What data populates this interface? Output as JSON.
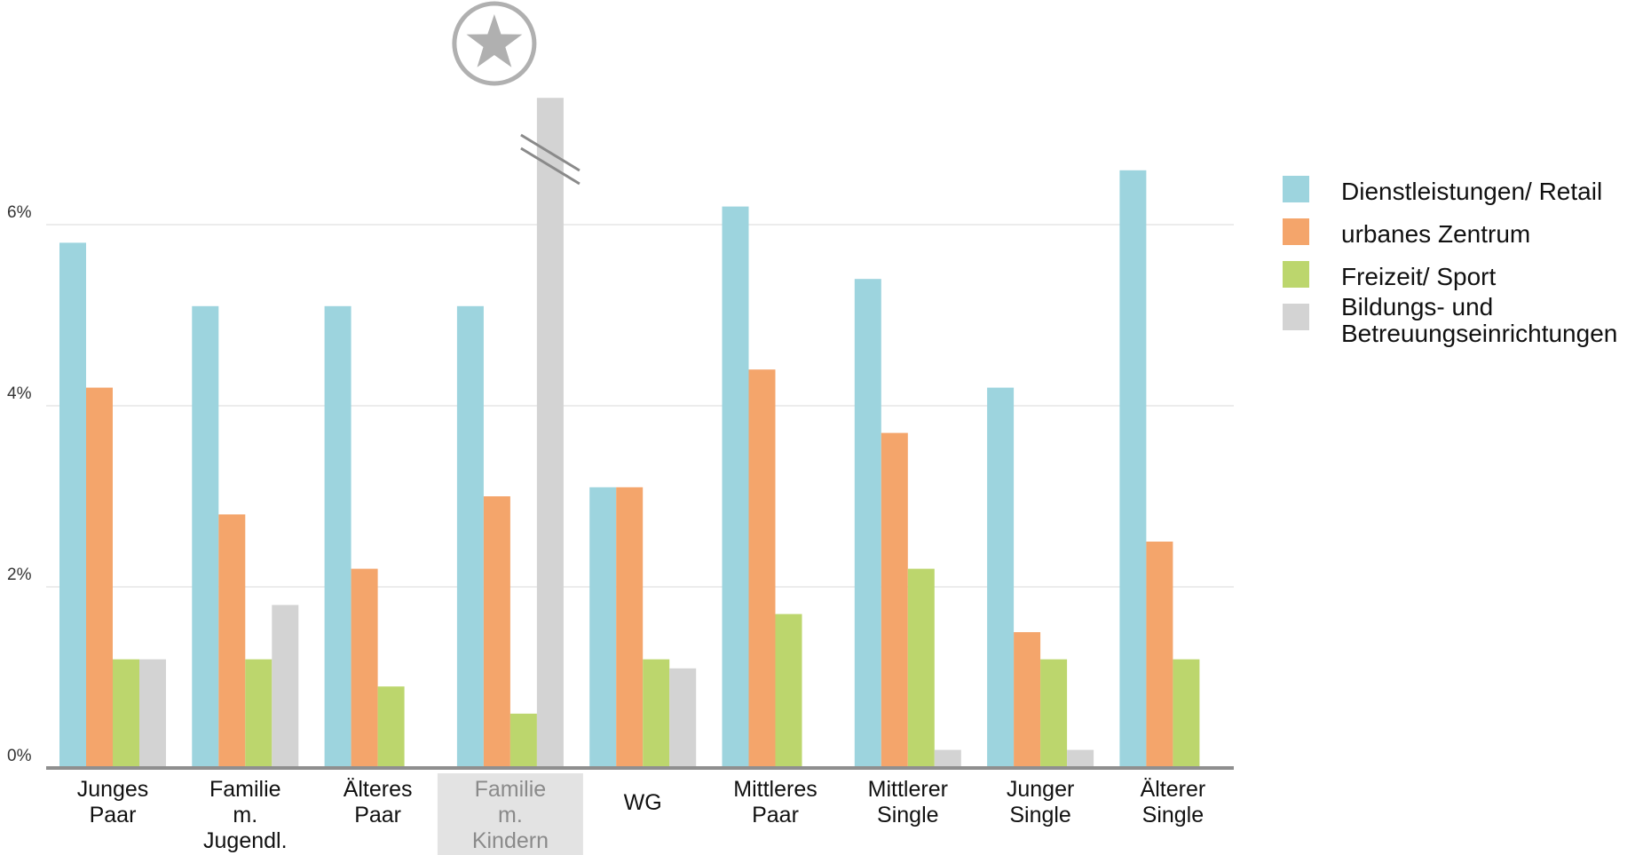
{
  "chart_data": {
    "type": "bar",
    "title": "",
    "xlabel": "",
    "ylabel": "",
    "ylim": [
      0,
      7.5
    ],
    "yticks": [
      0,
      2,
      4,
      6
    ],
    "ytick_labels": [
      "0%",
      "2%",
      "4%",
      "6%"
    ],
    "grid": true,
    "legend_position": "right",
    "categories": [
      [
        "Junges",
        "Paar"
      ],
      [
        "Familie",
        "m.",
        "Jugendl."
      ],
      [
        "Älteres",
        "Paar"
      ],
      [
        "Familie",
        "m.",
        "Kindern"
      ],
      [
        "WG"
      ],
      [
        "Mittleres",
        "Paar"
      ],
      [
        "Mittlerer",
        "Single"
      ],
      [
        "Junger",
        "Single"
      ],
      [
        "Älterer",
        "Single"
      ]
    ],
    "highlighted_category_index": 3,
    "highlight_marker_icon": "star-icon",
    "axis_break": {
      "series_index": 3,
      "category_index": 3,
      "icon": "axis-break-icon"
    },
    "series": [
      {
        "name": "Dienstleistungen/ Retail",
        "color": "#9dd4de",
        "values": [
          5.8,
          5.1,
          5.1,
          5.1,
          3.1,
          6.2,
          5.4,
          4.2,
          6.6
        ]
      },
      {
        "name": "urbanes Zentrum",
        "color": "#f4a56b",
        "values": [
          4.2,
          2.8,
          2.2,
          3.0,
          3.1,
          4.4,
          3.7,
          1.5,
          2.5
        ]
      },
      {
        "name": "Freizeit/ Sport",
        "color": "#bcd66d",
        "values": [
          1.2,
          1.2,
          0.9,
          0.6,
          1.2,
          1.7,
          2.2,
          1.2,
          1.2
        ]
      },
      {
        "name": "Bildungs- und Betreuungseinrichtungen",
        "color": "#d3d3d3",
        "values": [
          1.2,
          1.8,
          0.0,
          7.4,
          1.1,
          0.0,
          0.2,
          0.2,
          0.0
        ]
      }
    ],
    "legend_lines": [
      [
        "Dienstleistungen/ Retail"
      ],
      [
        "urbanes Zentrum"
      ],
      [
        "Freizeit/ Sport"
      ],
      [
        "Bildungs- und",
        "Betreuungseinrichtungen"
      ]
    ]
  }
}
